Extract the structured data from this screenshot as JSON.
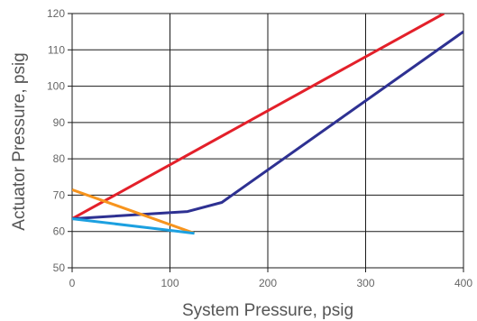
{
  "chart_data": {
    "type": "line",
    "title": "",
    "xlabel": "System Pressure, psig",
    "ylabel": "Actuator Pressure, psig",
    "xlim": [
      0,
      400
    ],
    "ylim": [
      50,
      120
    ],
    "x_ticks": [
      0,
      100,
      200,
      300,
      400
    ],
    "y_ticks": [
      50,
      60,
      70,
      80,
      90,
      100,
      110,
      120
    ],
    "grid": true,
    "legend": "none",
    "series": [
      {
        "color": "#e3202a",
        "points": [
          [
            0,
            63.5
          ],
          [
            380,
            120
          ]
        ]
      },
      {
        "color": "#2e3192",
        "points": [
          [
            0,
            63.5
          ],
          [
            118,
            65.5
          ],
          [
            153,
            68
          ],
          [
            400,
            115
          ]
        ]
      },
      {
        "color": "#f7941d",
        "points": [
          [
            0,
            71.5
          ],
          [
            125,
            59.5
          ]
        ]
      },
      {
        "color": "#1ca0e0",
        "points": [
          [
            0,
            63.5
          ],
          [
            125,
            59.5
          ]
        ]
      }
    ]
  }
}
